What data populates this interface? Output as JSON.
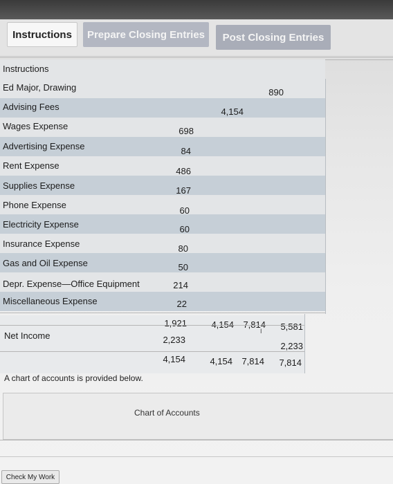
{
  "tabs": {
    "instructions": "Instructions",
    "prepare": "Prepare Closing Entries",
    "post": "Post Closing Entries"
  },
  "section_title": "Instructions",
  "rows": [
    {
      "label": "Ed Major, Drawing",
      "amount": "890"
    },
    {
      "label": "Advising Fees",
      "amount": "4,154"
    },
    {
      "label": "Wages Expense",
      "amount": "698"
    },
    {
      "label": "Advertising Expense",
      "amount": "84"
    },
    {
      "label": "Rent Expense",
      "amount": "486"
    },
    {
      "label": "Supplies Expense",
      "amount": "167"
    },
    {
      "label": "Phone Expense",
      "amount": "60"
    },
    {
      "label": "Electricity Expense",
      "amount": "60"
    },
    {
      "label": "Insurance Expense",
      "amount": "80"
    },
    {
      "label": "Gas and Oil Expense",
      "amount": "50"
    },
    {
      "label": "Depr. Expense—Office Equipment",
      "amount": "214"
    },
    {
      "label": "Miscellaneous Expense",
      "amount": "22"
    }
  ],
  "totals": {
    "c1": "1,921",
    "c2": "4,154",
    "c3": "7,814",
    "c4": "5,581"
  },
  "net_income": {
    "label": "Net Income",
    "c1": "2,233",
    "c4": "2,233"
  },
  "final": {
    "c1": "4,154",
    "c2": "4,154",
    "c3": "7,814",
    "c4": "7,814"
  },
  "note": "A chart of accounts is provided below.",
  "chart_of_accounts_title": "Chart of Accounts",
  "check_button": "Check My Work"
}
